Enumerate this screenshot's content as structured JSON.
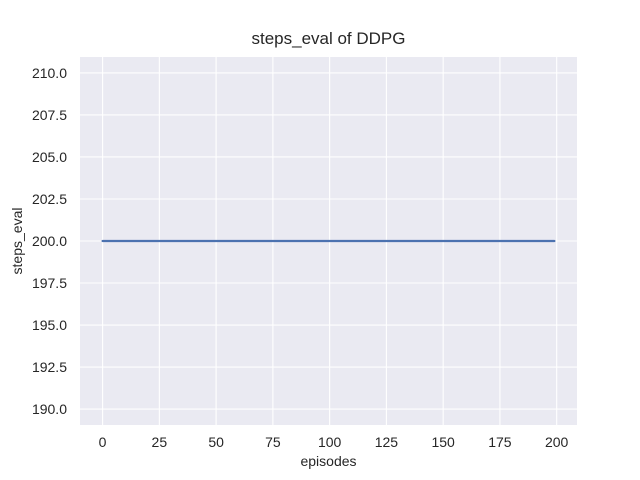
{
  "chart_data": {
    "type": "line",
    "title": "steps_eval of DDPG",
    "xlabel": "episodes",
    "ylabel": "steps_eval",
    "xlim": [
      -9.95,
      208.95
    ],
    "ylim": [
      189.05,
      210.95
    ],
    "xticks": [
      0,
      25,
      50,
      75,
      100,
      125,
      150,
      175,
      200
    ],
    "xtick_labels": [
      "0",
      "25",
      "50",
      "75",
      "100",
      "125",
      "150",
      "175",
      "200"
    ],
    "yticks": [
      190.0,
      192.5,
      195.0,
      197.5,
      200.0,
      202.5,
      205.0,
      207.5,
      210.0
    ],
    "ytick_labels": [
      "190.0",
      "192.5",
      "195.0",
      "197.5",
      "200.0",
      "202.5",
      "205.0",
      "207.5",
      "210.0"
    ],
    "grid": true,
    "legend": false,
    "plot_background_color": "#EAEAF2",
    "grid_color": "#FFFFFF",
    "text_color": "#262626",
    "series": [
      {
        "name": "steps_eval",
        "color": "#4C72B0",
        "constant_value": 200,
        "x": [
          0,
          199
        ],
        "y": [
          200,
          200
        ]
      }
    ]
  }
}
